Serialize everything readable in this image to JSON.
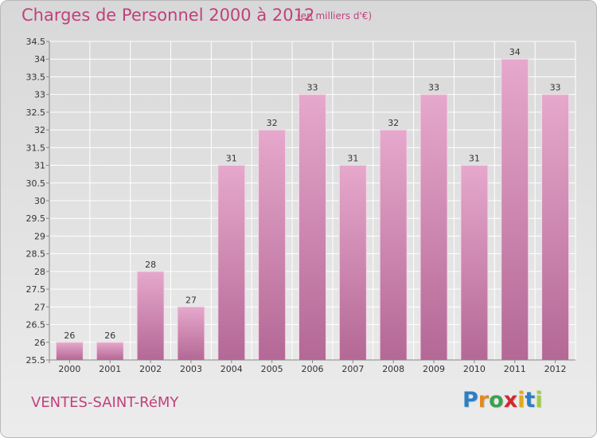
{
  "header": {
    "title": "Charges de Personnel 2000 à 2012",
    "subtitle": "(en milliers d'€)"
  },
  "footer": {
    "commune": "VENTES-SAINT-RéMY",
    "brand_letters": [
      {
        "char": "P",
        "color": "#2b7fc4"
      },
      {
        "char": "r",
        "color": "#e38a1e"
      },
      {
        "char": "o",
        "color": "#3aa14b"
      },
      {
        "char": "x",
        "color": "#d4262f"
      },
      {
        "char": "i",
        "color": "#e0a91c"
      },
      {
        "char": "t",
        "color": "#2b7fc4"
      },
      {
        "char": "i",
        "color": "#9fcf3d"
      }
    ]
  },
  "chart_data": {
    "type": "bar",
    "categories": [
      "2000",
      "2001",
      "2002",
      "2003",
      "2004",
      "2005",
      "2006",
      "2007",
      "2008",
      "2009",
      "2010",
      "2011",
      "2012"
    ],
    "values": [
      26,
      26,
      28,
      27,
      31,
      32,
      33,
      31,
      32,
      33,
      31,
      34,
      33
    ],
    "data_labels": [
      "26",
      "26",
      "28",
      "27",
      "31",
      "32",
      "33",
      "31",
      "32",
      "33",
      "31",
      "34",
      "33"
    ],
    "ylim": [
      25.5,
      34.5
    ],
    "yticks": [
      "25.5",
      "26",
      "26.5",
      "27",
      "27.5",
      "28",
      "28.5",
      "29",
      "29.5",
      "30",
      "30.5",
      "31",
      "31.5",
      "32",
      "32.5",
      "33",
      "33.5",
      "34",
      "34.5"
    ],
    "xlabel": "",
    "ylabel": "",
    "grid": true,
    "colors": {
      "bar_top": "#e6a8cc",
      "bar_bottom": "#b46895",
      "grid": "#ffffff",
      "axis_text": "#333333"
    }
  }
}
